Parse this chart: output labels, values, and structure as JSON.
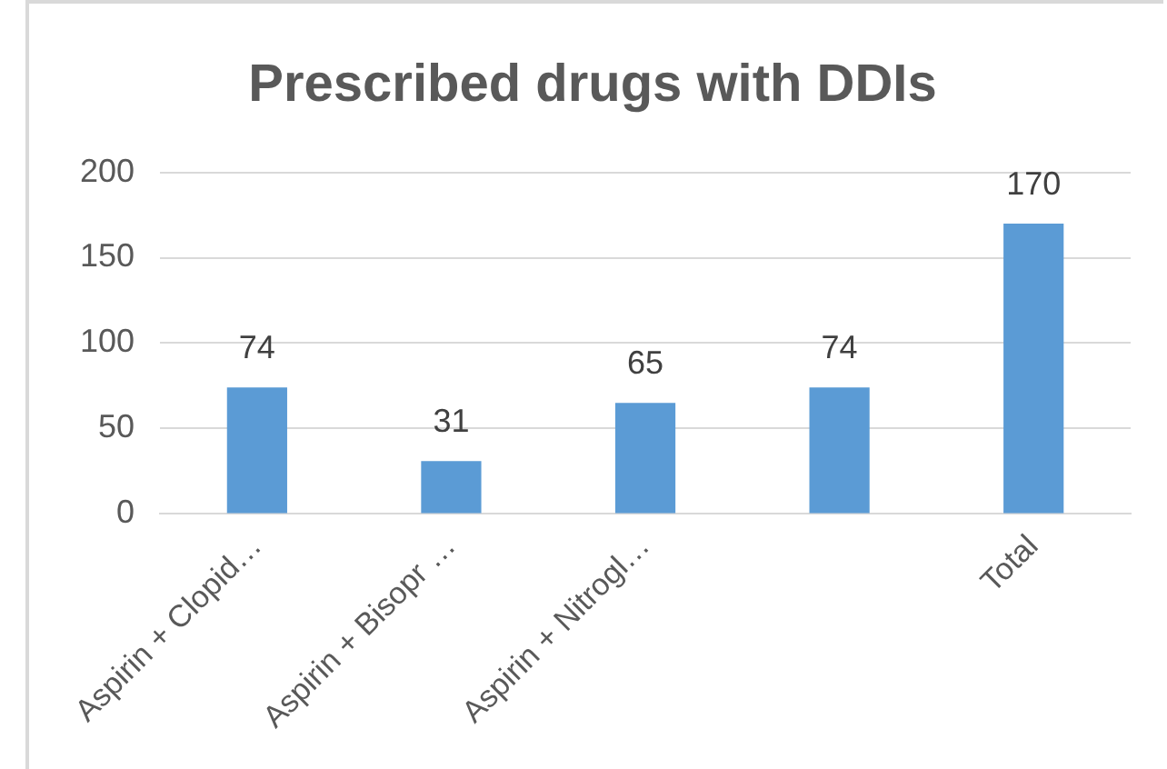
{
  "chart_data": {
    "type": "bar",
    "title": "Prescribed drugs with DDIs",
    "categories": [
      "Aspirin + Clopid…",
      "Aspirin + Bisopr …",
      "Aspirin + Nitrogl…",
      null,
      "Total"
    ],
    "values": [
      74,
      31,
      65,
      74,
      170
    ],
    "color": "#5b9bd5",
    "ylim": [
      0,
      200
    ],
    "yticks": [
      0,
      50,
      100,
      150,
      200
    ],
    "grid": "y",
    "data_labels": true,
    "legend": false
  }
}
